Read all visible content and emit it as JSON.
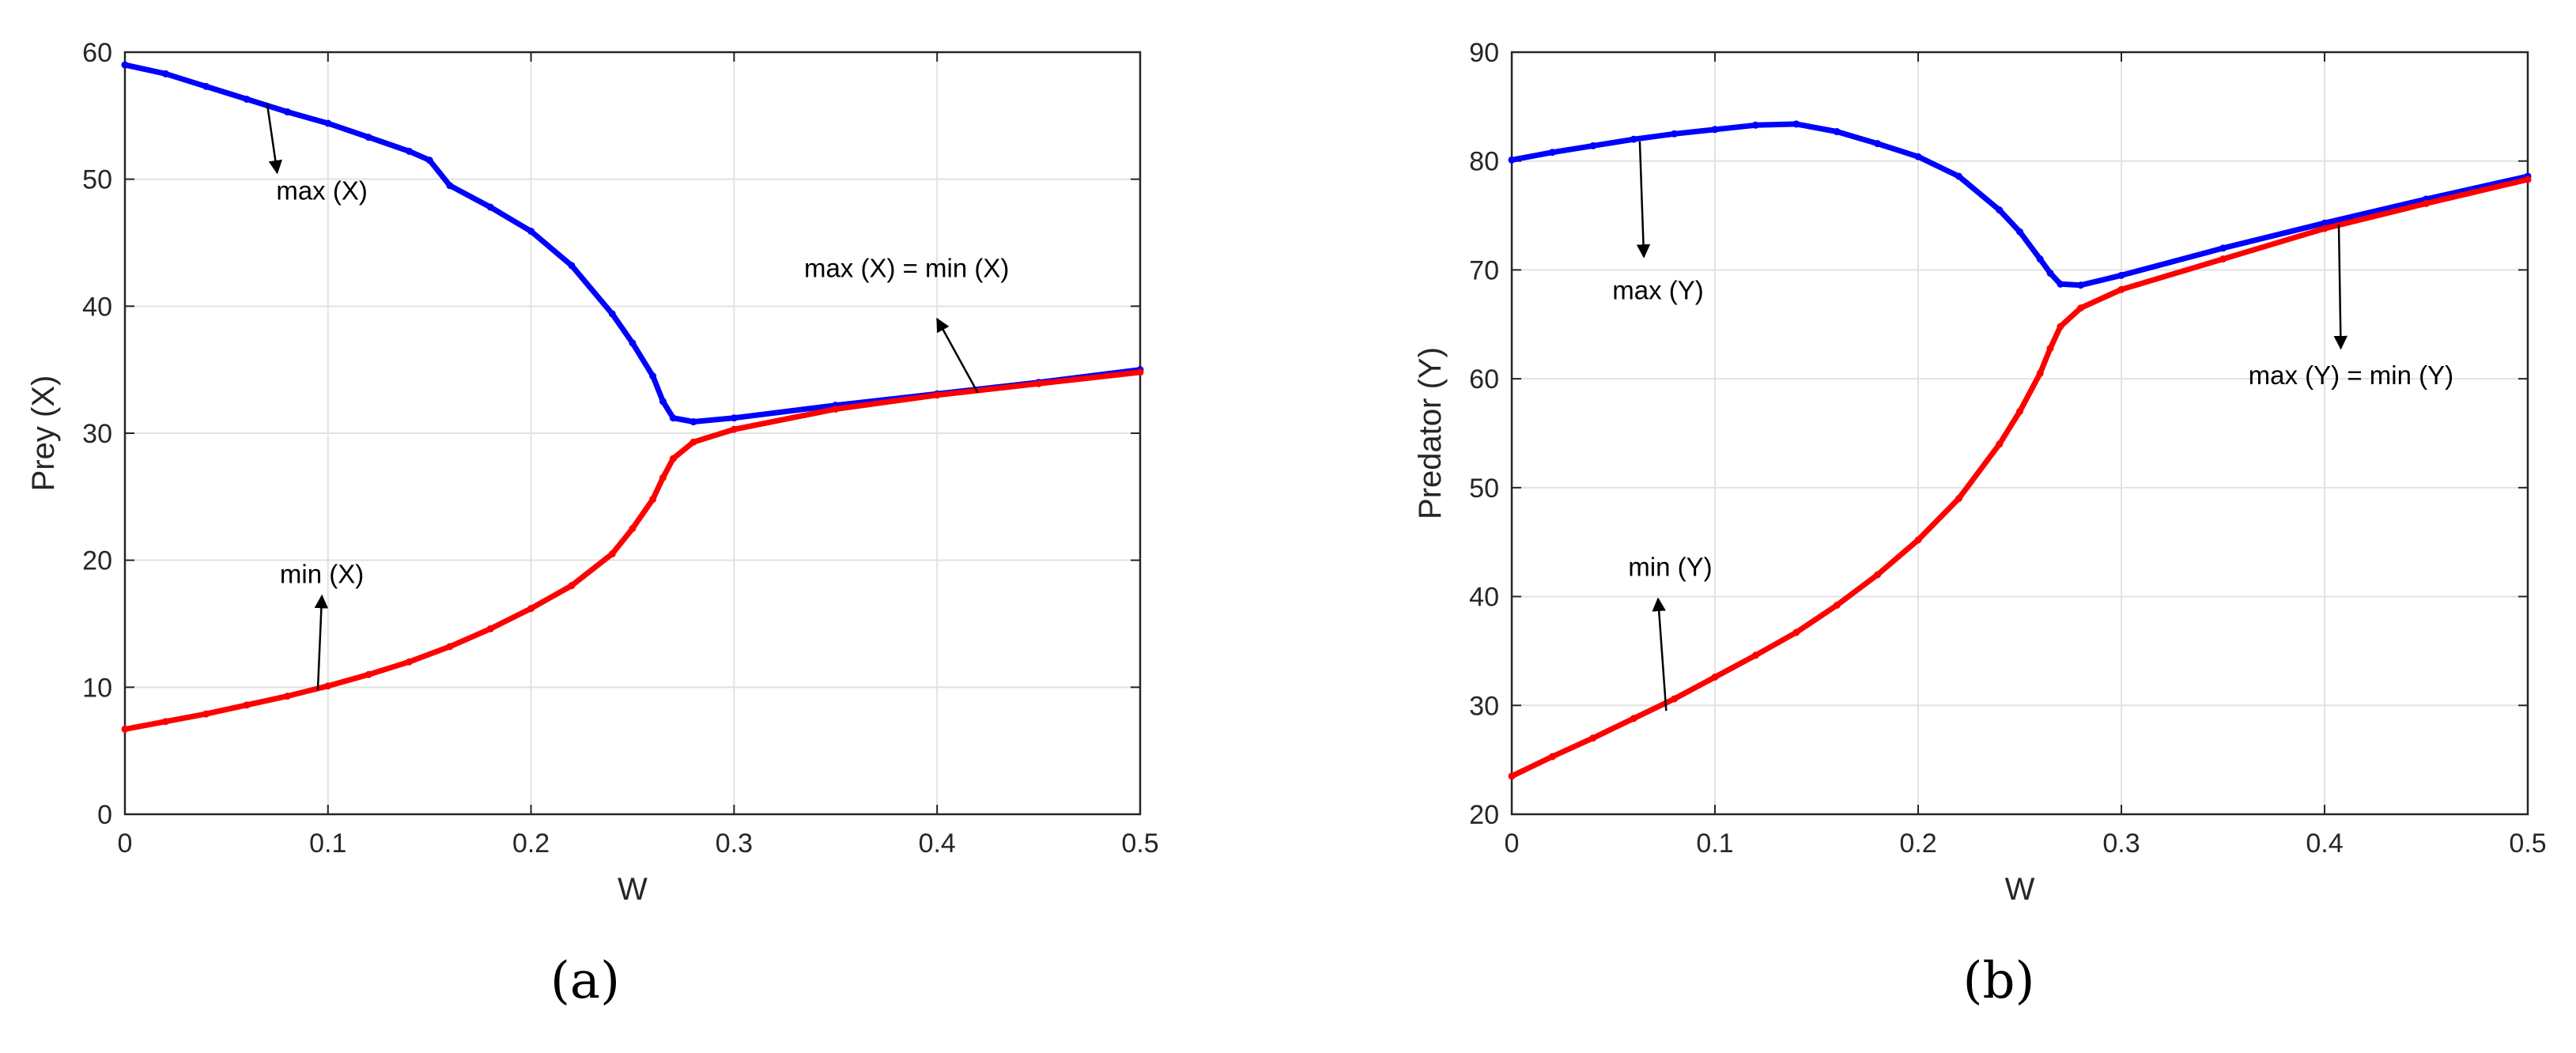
{
  "chart_data": [
    {
      "type": "line",
      "panel_label": "(a)",
      "xlabel": "W",
      "ylabel": "Prey (X)",
      "xlim": [
        0,
        0.5
      ],
      "ylim": [
        0,
        60
      ],
      "xticks": [
        0,
        0.1,
        0.2,
        0.3,
        0.4,
        0.5
      ],
      "yticks": [
        0,
        10,
        20,
        30,
        40,
        50,
        60
      ],
      "grid": true,
      "series": [
        {
          "name": "max (X)",
          "color": "#0000ff",
          "x": [
            0,
            0.02,
            0.04,
            0.06,
            0.08,
            0.1,
            0.12,
            0.14,
            0.15,
            0.16,
            0.18,
            0.2,
            0.22,
            0.24,
            0.25,
            0.26,
            0.265,
            0.27,
            0.28,
            0.3,
            0.35,
            0.4,
            0.45,
            0.5
          ],
          "y": [
            59,
            58.3,
            57.3,
            56.3,
            55.3,
            54.4,
            53.3,
            52.2,
            51.5,
            49.5,
            47.8,
            45.9,
            43.2,
            39.4,
            37.1,
            34.5,
            32.5,
            31.2,
            30.9,
            31.2,
            32.2,
            33.1,
            34.0,
            35.0
          ]
        },
        {
          "name": "min (X)",
          "color": "#ff0000",
          "x": [
            0,
            0.02,
            0.04,
            0.06,
            0.08,
            0.1,
            0.12,
            0.14,
            0.16,
            0.18,
            0.2,
            0.22,
            0.24,
            0.25,
            0.26,
            0.265,
            0.27,
            0.28,
            0.3,
            0.35,
            0.4,
            0.45,
            0.5
          ],
          "y": [
            6.7,
            7.3,
            7.9,
            8.6,
            9.3,
            10.1,
            11.0,
            12.0,
            13.2,
            14.6,
            16.2,
            18.0,
            20.5,
            22.5,
            24.8,
            26.5,
            28.0,
            29.3,
            30.3,
            31.9,
            33.0,
            33.9,
            34.8
          ]
        }
      ],
      "annotations": [
        {
          "text": "max (X)",
          "x": 0.097,
          "y": 48.4,
          "arrow_from": [
            0.07,
            56.0
          ],
          "arrow_to": [
            0.075,
            50.5
          ]
        },
        {
          "text": "min (X)",
          "x": 0.097,
          "y": 18.2,
          "arrow_from": [
            0.095,
            9.8
          ],
          "arrow_to": [
            0.097,
            17.2
          ]
        },
        {
          "text": "max (X) = min (X)",
          "x": 0.385,
          "y": 42.3,
          "arrow_from": [
            0.42,
            33.2
          ],
          "arrow_to": [
            0.4,
            39.0
          ]
        }
      ]
    },
    {
      "type": "line",
      "panel_label": "(b)",
      "xlabel": "W",
      "ylabel": "Predator (Y)",
      "xlim": [
        0,
        0.5
      ],
      "ylim": [
        20,
        90
      ],
      "xticks": [
        0,
        0.1,
        0.2,
        0.3,
        0.4,
        0.5
      ],
      "yticks": [
        20,
        30,
        40,
        50,
        60,
        70,
        80,
        90
      ],
      "grid": true,
      "series": [
        {
          "name": "max (Y)",
          "color": "#0000ff",
          "x": [
            0,
            0.02,
            0.04,
            0.06,
            0.08,
            0.1,
            0.12,
            0.14,
            0.16,
            0.18,
            0.2,
            0.22,
            0.24,
            0.25,
            0.26,
            0.265,
            0.27,
            0.28,
            0.3,
            0.35,
            0.4,
            0.45,
            0.5
          ],
          "y": [
            80.1,
            80.8,
            81.4,
            82.0,
            82.5,
            82.9,
            83.3,
            83.4,
            82.7,
            81.6,
            80.4,
            78.6,
            75.5,
            73.5,
            71.0,
            69.7,
            68.7,
            68.6,
            69.5,
            72.0,
            74.3,
            76.5,
            78.6
          ]
        },
        {
          "name": "min (Y)",
          "color": "#ff0000",
          "x": [
            0,
            0.02,
            0.04,
            0.06,
            0.08,
            0.1,
            0.12,
            0.14,
            0.16,
            0.18,
            0.2,
            0.22,
            0.24,
            0.25,
            0.26,
            0.265,
            0.27,
            0.28,
            0.3,
            0.35,
            0.4,
            0.45,
            0.5
          ],
          "y": [
            23.5,
            25.3,
            27.0,
            28.8,
            30.6,
            32.6,
            34.6,
            36.7,
            39.2,
            42.0,
            45.2,
            49.0,
            54.0,
            57.0,
            60.5,
            62.8,
            64.8,
            66.5,
            68.2,
            71.0,
            73.8,
            76.1,
            78.3
          ]
        }
      ],
      "annotations": [
        {
          "text": "max (Y)",
          "x": 0.072,
          "y": 67.3,
          "arrow_from": [
            0.063,
            81.8
          ],
          "arrow_to": [
            0.065,
            71.2
          ]
        },
        {
          "text": "min (Y)",
          "x": 0.078,
          "y": 41.9,
          "arrow_from": [
            0.076,
            29.5
          ],
          "arrow_to": [
            0.072,
            39.8
          ]
        },
        {
          "text": "max (Y) = min (Y)",
          "x": 0.413,
          "y": 59.5,
          "arrow_from": [
            0.407,
            74.2
          ],
          "arrow_to": [
            0.408,
            62.8
          ]
        }
      ]
    }
  ]
}
